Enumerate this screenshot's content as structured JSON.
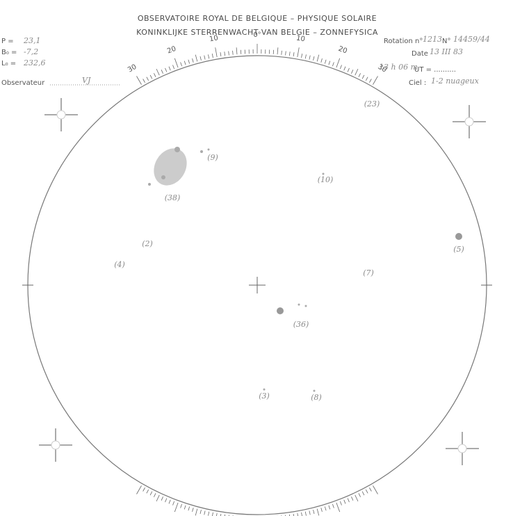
{
  "header": {
    "line1": "OBSERVATOIRE ROYAL DE  BELGIQUE – PHYSIQUE SOLAIRE",
    "line2": "KONINKLIJKE  STERRENWACHT VAN BELGIE – ZONNEFYSICA"
  },
  "left": [
    {
      "label": "P =",
      "value": "23,1"
    },
    {
      "label": "B₀ =",
      "value": "-7,2"
    },
    {
      "label": "L₀ =",
      "value": "232,6"
    }
  ],
  "observer": {
    "label": "Observateur",
    "value": "VJ"
  },
  "right": {
    "rotation_label": "Rotation n°",
    "rotation": "1213",
    "number_label": "N°",
    "number": "14459/44",
    "date_label": "Date",
    "date": "13 III 83",
    "time": "13 h 06 m",
    "ut_label": "UT = ..........",
    "sky_label": "Ciel :",
    "sky": "1-2 nuageux"
  },
  "scale_labels": [
    "30",
    "20",
    "10",
    "0°",
    "10",
    "20",
    "30"
  ],
  "groups": [
    "(38)",
    "(9)",
    "(10)",
    "(2)",
    "(4)",
    "(5)",
    "(7)",
    "(36)",
    "(3)",
    "(8)",
    "(23)"
  ]
}
